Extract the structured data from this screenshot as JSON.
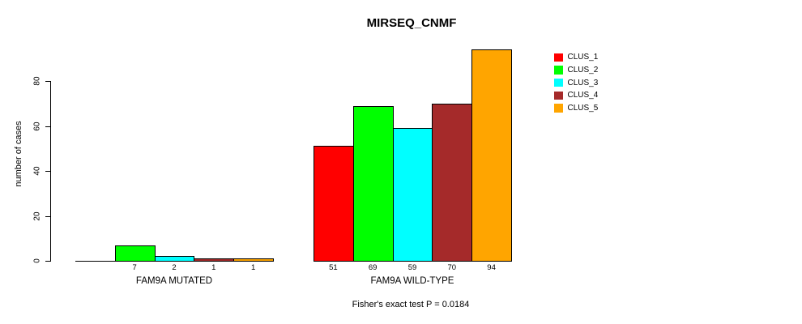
{
  "chart_data": {
    "type": "bar",
    "title": "MIRSEQ_CNMF",
    "ylabel": "number of cases",
    "xlabel": "",
    "yticks": [
      0,
      20,
      40,
      60,
      80
    ],
    "ylim": [
      0,
      94
    ],
    "grid": false,
    "legend_position": "right",
    "categories": [
      "FAM9A MUTATED",
      "FAM9A WILD-TYPE"
    ],
    "series": [
      {
        "name": "CLUS_1",
        "color": "#ff0000",
        "values": [
          0,
          51
        ]
      },
      {
        "name": "CLUS_2",
        "color": "#00ff00",
        "values": [
          7,
          69
        ]
      },
      {
        "name": "CLUS_3",
        "color": "#00ffff",
        "values": [
          2,
          59
        ]
      },
      {
        "name": "CLUS_4",
        "color": "#a52a2a",
        "values": [
          1,
          70
        ]
      },
      {
        "name": "CLUS_5",
        "color": "#ffa500",
        "values": [
          1,
          94
        ]
      }
    ],
    "groups": [
      {
        "label": "FAM9A MUTATED",
        "values": [
          0,
          7,
          2,
          1,
          1
        ],
        "bar_labels": [
          "",
          "7",
          "2",
          "1",
          "1"
        ]
      },
      {
        "label": "FAM9A WILD-TYPE",
        "values": [
          51,
          69,
          59,
          70,
          94
        ],
        "bar_labels": [
          "51",
          "69",
          "59",
          "70",
          "94"
        ]
      }
    ],
    "series_colors": [
      "#ff0000",
      "#00ff00",
      "#00ffff",
      "#a52a2a",
      "#ffa500"
    ],
    "legend": [
      {
        "label": "CLUS_1",
        "color": "#ff0000"
      },
      {
        "label": "CLUS_2",
        "color": "#00ff00"
      },
      {
        "label": "CLUS_3",
        "color": "#00ffff"
      },
      {
        "label": "CLUS_4",
        "color": "#a52a2a"
      },
      {
        "label": "CLUS_5",
        "color": "#ffa500"
      }
    ],
    "annotation": "Fisher's exact test P = 0.0184",
    "axis_color": "#000000",
    "background_color": "#ffffff"
  }
}
